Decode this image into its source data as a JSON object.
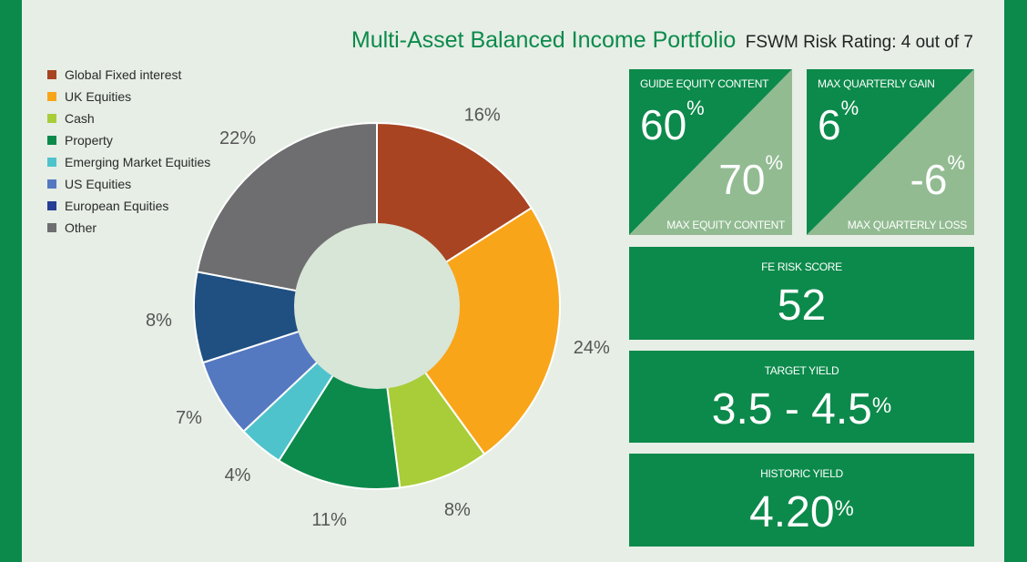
{
  "header": {
    "title": "Multi-Asset Balanced Income Portfolio",
    "risk_rating": "FSWM Risk Rating: 4 out of 7"
  },
  "chart_data": {
    "type": "pie",
    "style": "donut",
    "categories": [
      "Global Fixed interest",
      "UK Equities",
      "Cash",
      "Property",
      "Emerging Market Equities",
      "US Equities",
      "European Equities",
      "Other"
    ],
    "values": [
      16,
      24,
      8,
      11,
      4,
      7,
      8,
      22
    ],
    "labels": [
      "16%",
      "24%",
      "8%",
      "11%",
      "4%",
      "7%",
      "8%",
      "22%"
    ],
    "slice_legend_index": [
      0,
      1,
      2,
      3,
      4,
      5,
      6,
      7
    ],
    "colors": [
      "#a84422",
      "#f9a51a",
      "#a8cd38",
      "#0c8a4b",
      "#4fc3cc",
      "#5579c0",
      "#1f5081",
      "#6e6e70"
    ],
    "legend_colors": [
      "#a84422",
      "#f9a51a",
      "#a8cd38",
      "#0c8a4b",
      "#4fc3cc",
      "#5579c0",
      "#243e96",
      "#6e6e70"
    ],
    "hole_color": "#d8e6d8"
  },
  "legend": {
    "items": [
      "Global Fixed interest",
      "UK Equities",
      "Cash",
      "Property",
      "Emerging Market Equities",
      "US Equities",
      "European Equities",
      "Other"
    ]
  },
  "equity": {
    "guide_label": "GUIDE EQUITY CONTENT",
    "guide_value": "60",
    "max_label": "MAX EQUITY CONTENT",
    "max_value": "70",
    "unit": "%"
  },
  "quarterly": {
    "gain_label": "MAX QUARTERLY GAIN",
    "gain_value": "6",
    "loss_label": "MAX QUARTERLY LOSS",
    "loss_value": "-6",
    "unit": "%"
  },
  "fe_risk": {
    "label": "FE RISK SCORE",
    "value": "52"
  },
  "target_yield": {
    "label": "TARGET YIELD",
    "value": "3.5 - 4.5",
    "unit": "%"
  },
  "historic_yield": {
    "label": "HISTORIC YIELD",
    "value": "4.20",
    "unit": "%"
  },
  "colors": {
    "green": "#0c8a4b",
    "light_green": "#92bb92",
    "background": "#e6eee6"
  }
}
